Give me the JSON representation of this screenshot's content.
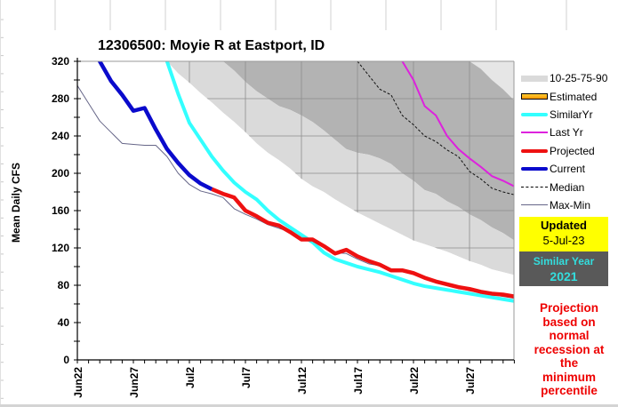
{
  "chart_data": {
    "type": "line",
    "title": "12306500: Moyie R at Eastport, ID",
    "xlabel": "",
    "ylabel": "Mean Daily CFS",
    "ylim": [
      0,
      320
    ],
    "yticks": [
      0,
      40,
      80,
      120,
      160,
      200,
      240,
      280,
      320
    ],
    "x_start": "Jun22",
    "x_days": 39,
    "xticks": [
      {
        "day": 0,
        "label": "Jun22"
      },
      {
        "day": 5,
        "label": "Jun27"
      },
      {
        "day": 10,
        "label": "Jul2"
      },
      {
        "day": 15,
        "label": "Jul7"
      },
      {
        "day": 20,
        "label": "Jul12"
      },
      {
        "day": 25,
        "label": "Jul17"
      },
      {
        "day": 30,
        "label": "Jul22"
      },
      {
        "day": 35,
        "label": "Jul27"
      }
    ],
    "grid": true,
    "legend_position": "right",
    "percentile_bands": {
      "name": "10-25-75-90",
      "start_day": 0,
      "p10": [
        420,
        405,
        390,
        370,
        355,
        345,
        340,
        330,
        320,
        307,
        297,
        286,
        276,
        265,
        255,
        244,
        232,
        222,
        214,
        205,
        194,
        186,
        180,
        172,
        165,
        158,
        152,
        146,
        140,
        134,
        128,
        124,
        120,
        116,
        111,
        106,
        102,
        97,
        94,
        91
      ],
      "p25": [
        520,
        500,
        480,
        460,
        440,
        420,
        400,
        385,
        370,
        355,
        345,
        335,
        327,
        320,
        310,
        298,
        288,
        280,
        272,
        268,
        262,
        255,
        246,
        236,
        226,
        222,
        220,
        216,
        210,
        200,
        192,
        182,
        178,
        170,
        164,
        156,
        150,
        142,
        136,
        128
      ],
      "p75": [
        700,
        680,
        660,
        640,
        620,
        600,
        580,
        560,
        540,
        520,
        500,
        480,
        460,
        440,
        420,
        410,
        400,
        390,
        380,
        370,
        360,
        355,
        350,
        345,
        340,
        335,
        330,
        325,
        324,
        323,
        322,
        322,
        321,
        321,
        321,
        320,
        312,
        300,
        290,
        278
      ],
      "p90": [
        900,
        880,
        860,
        840,
        820,
        800,
        780,
        760,
        740,
        720,
        700,
        680,
        660,
        640,
        620,
        600,
        590,
        580,
        570,
        560,
        550,
        540,
        530,
        520,
        510,
        500,
        490,
        480,
        470,
        460,
        450,
        440,
        430,
        420,
        410,
        400,
        390,
        380,
        370,
        360
      ]
    },
    "series": [
      {
        "name": "Max-Min",
        "start_day": 0,
        "values": [
          294,
          275,
          256,
          244,
          232,
          231,
          230,
          230,
          218,
          200,
          188,
          181,
          178,
          174,
          162,
          156,
          151,
          145,
          141,
          137,
          129,
          127,
          121,
          115,
          114,
          108,
          103,
          101,
          97,
          96,
          93,
          88,
          83,
          80,
          77,
          74,
          72,
          70,
          68,
          66
        ]
      },
      {
        "name": "Current",
        "start_day": 0,
        "values": [
          360,
          340,
          320,
          299,
          284,
          267,
          270,
          247,
          226,
          211,
          198,
          189,
          183
        ]
      },
      {
        "name": "Projected",
        "start_day": 12,
        "values": [
          183,
          178,
          174,
          160,
          154,
          147,
          144,
          137,
          129,
          129,
          122,
          114,
          118,
          111,
          106,
          102,
          96,
          96,
          93,
          88,
          84,
          81,
          78,
          76,
          73,
          71,
          70,
          68
        ]
      },
      {
        "name": "SimilarYr",
        "start_day": 7,
        "values": [
          360,
          320,
          285,
          254,
          236,
          218,
          203,
          190,
          180,
          172,
          160,
          150,
          142,
          134,
          126,
          115,
          108,
          104,
          100,
          97,
          94,
          90,
          86,
          82,
          79,
          77,
          75,
          73,
          71,
          69,
          67,
          65,
          63
        ]
      },
      {
        "name": "Last Yr",
        "start_day": 28,
        "values": [
          350,
          320,
          300,
          272,
          262,
          240,
          226,
          216,
          207,
          197,
          192,
          186
        ]
      },
      {
        "name": "Median",
        "start_day": 24,
        "values": [
          335,
          320,
          305,
          290,
          284,
          262,
          252,
          240,
          234,
          225,
          218,
          202,
          194,
          184,
          180,
          177
        ]
      }
    ]
  },
  "legend": [
    {
      "key": "band",
      "label": "10-25-75-90",
      "color": "#dadada"
    },
    {
      "key": "estimated",
      "label": "Estimated",
      "color": "#ff9900"
    },
    {
      "key": "similar",
      "label": "SimilarYr",
      "color": "#33ffff"
    },
    {
      "key": "lastyr",
      "label": "Last Yr",
      "color": "#dd22dd"
    },
    {
      "key": "projected",
      "label": "Projected",
      "color": "#ee1111"
    },
    {
      "key": "current",
      "label": "Current",
      "color": "#0a0acc"
    },
    {
      "key": "median",
      "label": "Median",
      "color": "#000000"
    },
    {
      "key": "maxmin",
      "label": "Max-Min",
      "color": "#666688"
    }
  ],
  "updated": {
    "label": "Updated",
    "date": "5-Jul-23"
  },
  "similar_year": {
    "label": "Similar Year",
    "year": "2021"
  },
  "note": [
    "Projection",
    "based on",
    "normal",
    "recession at",
    "the",
    "minimum",
    "percentile"
  ],
  "colors": {
    "band_outer": "#dadada",
    "band_inner": "#b3b3b3",
    "above90": "#e6e6e6",
    "grid": "#8c8c8c"
  }
}
